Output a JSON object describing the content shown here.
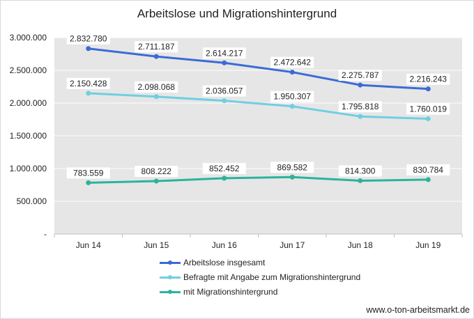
{
  "chart_data": {
    "type": "line",
    "title": "Arbeitslose und Migrationshintergrund",
    "xlabel": "",
    "ylabel": "",
    "categories": [
      "Jun 14",
      "Jun 15",
      "Jun 16",
      "Jun 17",
      "Jun 18",
      "Jun 19"
    ],
    "ylim": [
      0,
      3000000
    ],
    "yticks": [
      0,
      500000,
      1000000,
      1500000,
      2000000,
      2500000,
      3000000
    ],
    "ytick_labels": [
      "-",
      "500.000",
      "1.000.000",
      "1.500.000",
      "2.000.000",
      "2.500.000",
      "3.000.000"
    ],
    "grid": true,
    "legend_position": "bottom",
    "series": [
      {
        "name": "Arbeitslose insgesamt",
        "color": "#3A6BD6",
        "values": [
          2832780,
          2711187,
          2614217,
          2472642,
          2275787,
          2216243
        ],
        "labels": [
          "2.832.780",
          "2.711.187",
          "2.614.217",
          "2.472.642",
          "2.275.787",
          "2.216.243"
        ]
      },
      {
        "name": "Befragte mit Angabe zum Migrationshintergrund",
        "color": "#6FCFE0",
        "values": [
          2150428,
          2098068,
          2036057,
          1950307,
          1795818,
          1760019
        ],
        "labels": [
          "2.150.428",
          "2.098.068",
          "2.036.057",
          "1.950.307",
          "1.795.818",
          "1.760.019"
        ]
      },
      {
        "name": "mit Migrationshintergrund",
        "color": "#2BB39B",
        "values": [
          783559,
          808222,
          852452,
          869582,
          814300,
          830784
        ],
        "labels": [
          "783.559",
          "808.222",
          "852.452",
          "869.582",
          "814.300",
          "830.784"
        ]
      }
    ]
  },
  "source": "www.o-ton-arbeitsmarkt.de"
}
